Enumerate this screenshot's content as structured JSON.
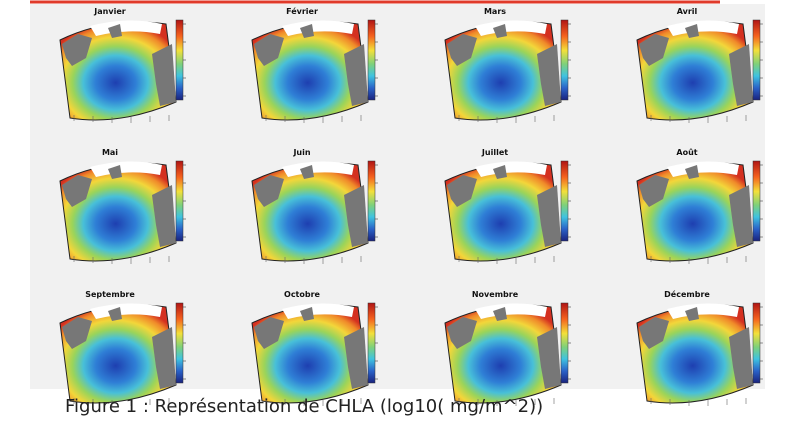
{
  "panels": [
    {
      "title": "Janvier"
    },
    {
      "title": "Février"
    },
    {
      "title": "Mars"
    },
    {
      "title": "Avril"
    },
    {
      "title": "Mai"
    },
    {
      "title": "Juin"
    },
    {
      "title": "Juillet"
    },
    {
      "title": "Août"
    },
    {
      "title": "Septembre"
    },
    {
      "title": "Octobre"
    },
    {
      "title": "Novembre"
    },
    {
      "title": "Décembre"
    }
  ],
  "caption": "Figure 1 : Représentation de CHLA (log10( mg/m^2))"
}
